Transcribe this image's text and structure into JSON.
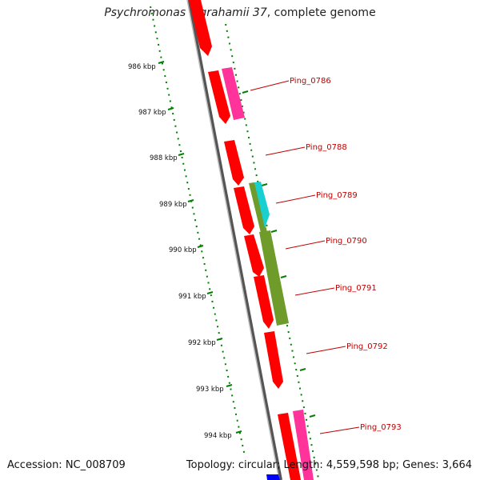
{
  "header": {
    "organism": "Psychromonas ingrahamii 37",
    "suffix": ", complete genome"
  },
  "footer": {
    "accession": "Accession: NC_008709",
    "summary": "Topology: circular; Length: 4,559,598 bp; Genes: 3,664"
  },
  "map": {
    "kbp_labels": [
      "986 kbp",
      "987 kbp",
      "988 kbp",
      "989 kbp",
      "990 kbp",
      "991 kbp",
      "992 kbp",
      "993 kbp",
      "994 kbp"
    ],
    "gene_labels": [
      "Ping_0786",
      "Ping_0788",
      "Ping_0789",
      "Ping_0790",
      "Ping_0791",
      "Ping_0792",
      "Ping_0793"
    ],
    "colors": {
      "cds_red": "#ff0000",
      "cds_pink": "#ff3399",
      "cds_cyan": "#19d0d0",
      "cds_olive": "#6e9b2a",
      "backbone": "#7a7a7a",
      "tick_green": "#008000",
      "label_red": "#c00000",
      "blue_feature": "#0000ff"
    }
  }
}
